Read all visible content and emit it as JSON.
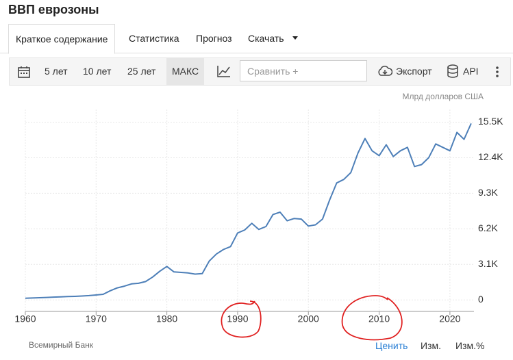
{
  "header": {
    "title": "ВВП еврозоны"
  },
  "tabs": [
    "Краткое содержание",
    "Статистика",
    "Прогноз",
    "Скачать"
  ],
  "toolbar": {
    "ranges": [
      "5 лет",
      "10 лет",
      "25 лет",
      "МАКС"
    ],
    "compare": "Сравнить +",
    "export": "Экспорт",
    "api": "API"
  },
  "footer": {
    "source": "Всемирный Банк",
    "links": [
      "Ценить",
      "Изм.",
      "Изм.%"
    ]
  },
  "chart_data": {
    "type": "line",
    "y_label": "Млрд долларов США",
    "x": [
      1960,
      1961,
      1962,
      1963,
      1964,
      1965,
      1966,
      1967,
      1968,
      1969,
      1970,
      1971,
      1972,
      1973,
      1974,
      1975,
      1976,
      1977,
      1978,
      1979,
      1980,
      1981,
      1982,
      1983,
      1984,
      1985,
      1986,
      1987,
      1988,
      1989,
      1990,
      1991,
      1992,
      1993,
      1994,
      1995,
      1996,
      1997,
      1998,
      1999,
      2000,
      2001,
      2002,
      2003,
      2004,
      2005,
      2006,
      2007,
      2008,
      2009,
      2010,
      2011,
      2012,
      2013,
      2014,
      2015,
      2016,
      2017,
      2018,
      2019,
      2020,
      2021,
      2022,
      2023
    ],
    "series": [
      {
        "name": "ВВП",
        "color": "#4d7fb8",
        "values": [
          150,
          170,
          195,
          220,
          245,
          270,
          295,
          315,
          340,
          380,
          430,
          490,
          800,
          1050,
          1200,
          1400,
          1450,
          1600,
          2000,
          2500,
          2920,
          2440,
          2400,
          2350,
          2250,
          2300,
          3400,
          4000,
          4400,
          4650,
          5840,
          6100,
          6680,
          6150,
          6400,
          7450,
          7650,
          6900,
          7100,
          7050,
          6440,
          6550,
          7050,
          8700,
          10200,
          10500,
          11100,
          12800,
          14070,
          13000,
          12580,
          13530,
          12500,
          13000,
          13300,
          11630,
          11800,
          12400,
          13600,
          13300,
          13000,
          14610,
          14000,
          15380
        ]
      }
    ],
    "xlim": [
      1960,
      2023.4
    ],
    "xticks": [
      1960,
      1970,
      1980,
      1990,
      2000,
      2010,
      2020
    ],
    "ylim": [
      -1000,
      16600
    ],
    "yticks": [
      0,
      {
        "value": 3100,
        "label": "3.1K"
      },
      {
        "value": 6200,
        "label": "6.2K"
      },
      {
        "value": 9300,
        "label": "9.3K"
      },
      {
        "value": 12400,
        "label": "12.4K"
      },
      {
        "value": 15500,
        "label": "15.5K"
      }
    ],
    "grid": true
  }
}
